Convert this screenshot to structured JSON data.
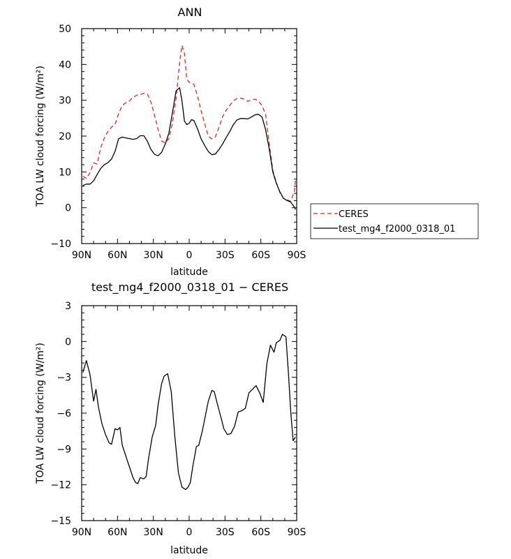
{
  "chart_data": [
    {
      "type": "line",
      "title": "ANN",
      "xlabel": "latitude",
      "ylabel": "TOA LW cloud forcing (W/m²)",
      "xlim": [
        90,
        -90
      ],
      "ylim": [
        -10,
        50
      ],
      "xticks": [
        90,
        60,
        30,
        0,
        -30,
        -60,
        -90
      ],
      "xtick_labels": [
        "90N",
        "60N",
        "30N",
        "0",
        "30S",
        "60S",
        "90S"
      ],
      "yticks": [
        -10,
        0,
        10,
        20,
        30,
        40,
        50
      ],
      "ytick_labels": [
        "−10",
        "0",
        "10",
        "20",
        "30",
        "40",
        "50"
      ],
      "legend": {
        "placement": "outside-right"
      },
      "series": [
        {
          "name": "CERES",
          "color": "#e8231f",
          "dash": true,
          "x": [
            89,
            86,
            83,
            80,
            77,
            74,
            71,
            68,
            65,
            62,
            59,
            56,
            53,
            50,
            47,
            44,
            41,
            38,
            35,
            32,
            29,
            26,
            23,
            20,
            17,
            14,
            11,
            8,
            6,
            4,
            2,
            0,
            -2,
            -4,
            -7,
            -10,
            -13,
            -16,
            -19,
            -22,
            -25,
            -28,
            -31,
            -34,
            -37,
            -40,
            -43,
            -46,
            -49,
            -52,
            -55,
            -58,
            -61,
            -64,
            -67,
            -70,
            -73,
            -76,
            -79,
            -82,
            -85,
            -88,
            -89
          ],
          "y": [
            8.8,
            8.2,
            9.8,
            12.5,
            12.2,
            16.8,
            19.5,
            21.3,
            22.5,
            23.3,
            26.3,
            28.6,
            29.3,
            29.8,
            30.8,
            31.4,
            31.6,
            31.9,
            31.8,
            29.5,
            25.8,
            21.8,
            18.6,
            18.1,
            19.3,
            23.5,
            30.5,
            40.5,
            45.3,
            43.1,
            35.9,
            35.0,
            34.8,
            34.4,
            31.2,
            27.0,
            23.5,
            20.0,
            19.2,
            19.8,
            22.5,
            25.4,
            27.2,
            28.6,
            29.8,
            30.5,
            30.6,
            30.3,
            29.7,
            30.1,
            30.3,
            29.8,
            28.5,
            26.0,
            18.0,
            10.5,
            7.0,
            4.2,
            2.6,
            2.2,
            1.8,
            4.5,
            7.8
          ]
        },
        {
          "name": "test_mg4_f2000_0318_01",
          "color": "#000000",
          "dash": false,
          "x": [
            89,
            86,
            83,
            80,
            77,
            74,
            71,
            68,
            65,
            62,
            59,
            56,
            53,
            50,
            47,
            44,
            41,
            38,
            35,
            32,
            29,
            26,
            23,
            20,
            17,
            14,
            11,
            8,
            6,
            4,
            2,
            0,
            -2,
            -4,
            -7,
            -10,
            -13,
            -16,
            -19,
            -22,
            -25,
            -28,
            -31,
            -34,
            -37,
            -40,
            -43,
            -46,
            -49,
            -52,
            -55,
            -58,
            -61,
            -64,
            -67,
            -70,
            -73,
            -76,
            -79,
            -82,
            -85,
            -88,
            -89
          ],
          "y": [
            6.2,
            6.6,
            6.6,
            7.5,
            9.3,
            11.0,
            12.0,
            12.6,
            13.6,
            15.8,
            19.3,
            19.7,
            19.5,
            19.3,
            19.1,
            19.3,
            20.1,
            20.1,
            18.6,
            16.3,
            14.9,
            14.5,
            15.5,
            17.8,
            20.8,
            26.5,
            32.6,
            33.5,
            29.8,
            24.2,
            23.2,
            23.6,
            24.6,
            24.3,
            22.0,
            19.2,
            17.4,
            15.7,
            14.8,
            15.0,
            16.3,
            17.8,
            19.6,
            21.3,
            23.2,
            24.5,
            24.9,
            24.9,
            24.8,
            25.3,
            25.9,
            26.1,
            25.3,
            21.8,
            16.5,
            10.0,
            6.8,
            4.4,
            2.6,
            2.0,
            1.6,
            0.2,
            -0.5
          ]
        }
      ]
    },
    {
      "type": "line",
      "title": "test_mg4_f2000_0318_01 − CERES",
      "xlabel": "latitude",
      "ylabel": "TOA LW cloud forcing (W/m²)",
      "xlim": [
        90,
        -90
      ],
      "ylim": [
        -15,
        3
      ],
      "xticks": [
        90,
        60,
        30,
        0,
        -30,
        -60,
        -90
      ],
      "xtick_labels": [
        "90N",
        "60N",
        "30N",
        "0",
        "30S",
        "60S",
        "90S"
      ],
      "yticks": [
        -15,
        -12,
        -9,
        -6,
        -3,
        0,
        3
      ],
      "ytick_labels": [
        "−15",
        "−12",
        "−9",
        "−6",
        "−3",
        "0",
        "3"
      ],
      "series": [
        {
          "color": "#000000",
          "dash": false,
          "x": [
            89,
            86,
            83,
            80,
            78,
            76,
            73,
            70,
            67,
            65,
            62,
            60,
            58,
            56,
            53,
            50,
            47,
            45,
            43,
            41,
            38,
            36,
            34,
            31,
            28,
            26,
            23,
            21,
            18,
            15,
            12,
            9,
            6,
            3,
            1,
            -1,
            -3,
            -6,
            -8,
            -11,
            -14,
            -16,
            -19,
            -21,
            -24,
            -27,
            -29,
            -32,
            -35,
            -38,
            -41,
            -44,
            -47,
            -50,
            -53,
            -56,
            -59,
            -62,
            -65,
            -68,
            -71,
            -73,
            -76,
            -78,
            -81,
            -83,
            -85,
            -87,
            -89
          ],
          "y": [
            -2.6,
            -1.6,
            -2.8,
            -5.0,
            -4.0,
            -5.5,
            -6.9,
            -7.8,
            -8.5,
            -8.6,
            -7.3,
            -7.4,
            -7.2,
            -8.7,
            -9.6,
            -10.5,
            -11.4,
            -11.8,
            -11.9,
            -11.4,
            -11.5,
            -11.3,
            -9.8,
            -8.0,
            -7.0,
            -5.3,
            -3.5,
            -2.9,
            -2.7,
            -4.2,
            -8.0,
            -11.0,
            -12.2,
            -12.4,
            -12.2,
            -11.8,
            -10.5,
            -8.8,
            -8.7,
            -7.5,
            -6.0,
            -5.0,
            -4.1,
            -4.2,
            -5.4,
            -6.5,
            -7.3,
            -7.8,
            -7.7,
            -7.1,
            -5.9,
            -5.8,
            -5.6,
            -4.3,
            -4.0,
            -3.7,
            -4.3,
            -5.1,
            -1.9,
            -0.3,
            -0.9,
            -0.1,
            0.1,
            0.6,
            0.4,
            -2.5,
            -5.8,
            -8.3,
            -8.0
          ]
        }
      ]
    }
  ]
}
